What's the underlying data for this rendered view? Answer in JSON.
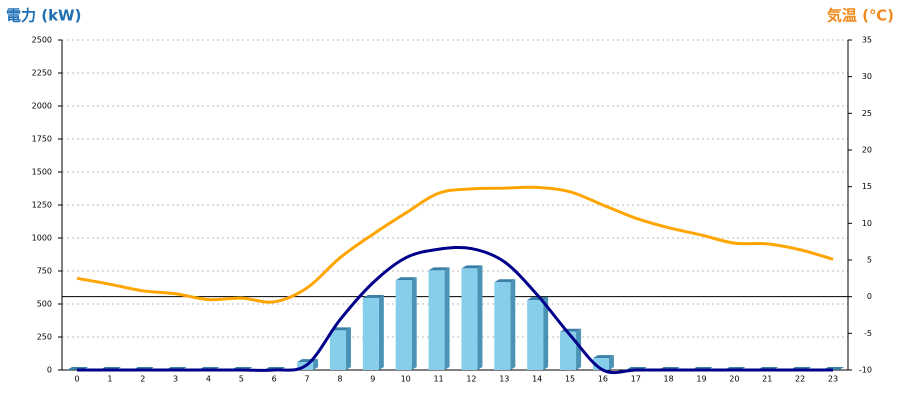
{
  "chart_data": {
    "type": "bar-line",
    "y_label": "電力 (kW)",
    "y2_label": "気温 (℃)",
    "categories": [
      "0",
      "1",
      "2",
      "3",
      "4",
      "5",
      "6",
      "7",
      "8",
      "9",
      "10",
      "11",
      "12",
      "13",
      "14",
      "15",
      "16",
      "17",
      "18",
      "19",
      "20",
      "21",
      "22",
      "23"
    ],
    "series": [
      {
        "type": "bar",
        "color": "#87ceeb",
        "values": [
          0,
          0,
          0,
          0,
          0,
          0,
          0,
          60,
          300,
          545,
          680,
          755,
          770,
          665,
          530,
          290,
          90,
          0,
          0,
          0,
          0,
          0,
          0,
          0
        ]
      },
      {
        "type": "line",
        "color": "#00008b",
        "values": [
          0,
          0,
          0,
          0,
          0,
          0,
          0,
          40,
          380,
          660,
          850,
          915,
          920,
          820,
          570,
          265,
          0,
          0,
          0,
          0,
          0,
          0,
          0,
          0
        ]
      },
      {
        "type": "line",
        "color": "#ffa500",
        "axis": "y2",
        "values": [
          2.5,
          1.7,
          0.8,
          0.4,
          -0.4,
          -0.2,
          -0.7,
          1.2,
          5.3,
          8.5,
          11.4,
          14.1,
          14.7,
          14.8,
          14.9,
          14.3,
          12.5,
          10.7,
          9.4,
          8.4,
          7.3,
          7.2,
          6.4,
          5.1
        ]
      }
    ],
    "ylim": [
      0,
      2500
    ],
    "yticks": [
      0,
      250,
      500,
      750,
      1000,
      1250,
      1500,
      1750,
      2000,
      2250,
      2500
    ],
    "y2lim": [
      -10,
      35
    ],
    "y2ticks": [
      -10,
      -5,
      0,
      5,
      10,
      15,
      20,
      25,
      30,
      35
    ],
    "grid": true,
    "y2_zero_line": true
  }
}
